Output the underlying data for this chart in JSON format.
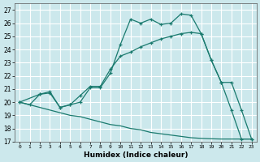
{
  "xlabel": "Humidex (Indice chaleur)",
  "bg_color": "#cce8ec",
  "grid_color": "#b0d8dc",
  "line_color": "#1a7a6e",
  "xlim": [
    -0.5,
    23.5
  ],
  "ylim": [
    17,
    27.5
  ],
  "yticks": [
    17,
    18,
    19,
    20,
    21,
    22,
    23,
    24,
    25,
    26,
    27
  ],
  "xticks": [
    0,
    1,
    2,
    3,
    4,
    5,
    6,
    7,
    8,
    9,
    10,
    11,
    12,
    13,
    14,
    15,
    16,
    17,
    18,
    19,
    20,
    21,
    22,
    23
  ],
  "line1_x": [
    0,
    1,
    2,
    3,
    4,
    5,
    6,
    7,
    8,
    9,
    10,
    11,
    12,
    13,
    14,
    15,
    16,
    17,
    18,
    19,
    20,
    21,
    22,
    23
  ],
  "line1_y": [
    20.0,
    19.8,
    20.6,
    20.7,
    19.6,
    19.8,
    20.0,
    21.1,
    21.1,
    22.2,
    24.4,
    26.3,
    26.0,
    26.3,
    25.9,
    26.0,
    26.7,
    26.6,
    25.2,
    23.2,
    21.5,
    19.4,
    17.2,
    17.2
  ],
  "line2_x": [
    0,
    2,
    3,
    4,
    5,
    6,
    7,
    8,
    9,
    10,
    11,
    12,
    13,
    14,
    15,
    16,
    17,
    18,
    19,
    20,
    21,
    22,
    23
  ],
  "line2_y": [
    20.0,
    20.6,
    20.8,
    19.6,
    19.8,
    20.5,
    21.2,
    21.2,
    22.5,
    23.5,
    23.8,
    24.2,
    24.5,
    24.8,
    25.0,
    25.2,
    25.3,
    25.2,
    23.2,
    21.5,
    21.5,
    19.4,
    17.2
  ],
  "line3_x": [
    0,
    1,
    2,
    3,
    4,
    5,
    6,
    7,
    8,
    9,
    10,
    11,
    12,
    13,
    14,
    15,
    16,
    17,
    18,
    19,
    20,
    21,
    22,
    23
  ],
  "line3_y": [
    20.0,
    19.8,
    19.6,
    19.4,
    19.2,
    19.0,
    18.9,
    18.7,
    18.5,
    18.3,
    18.2,
    18.0,
    17.9,
    17.7,
    17.6,
    17.5,
    17.4,
    17.3,
    17.25,
    17.22,
    17.2,
    17.2,
    17.2,
    17.2
  ]
}
